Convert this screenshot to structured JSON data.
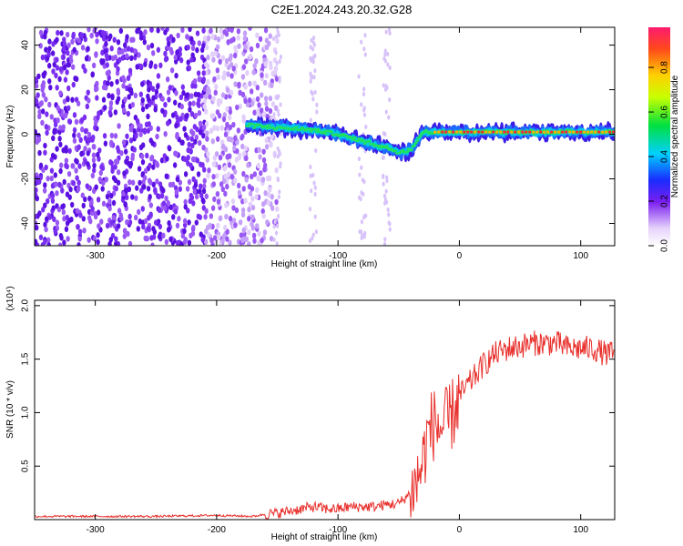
{
  "title": "C2E1.2024.243.20.32.G28",
  "chart_data": [
    {
      "type": "heatmap",
      "xlabel": "Height of straight line (km)",
      "ylabel": "Frequency (Hz)",
      "xlim": [
        -350,
        128
      ],
      "ylim": [
        -50,
        48
      ],
      "xticks": [
        -300,
        -200,
        -100,
        0,
        100
      ],
      "yticks": [
        -40,
        -20,
        0,
        20,
        40
      ],
      "colorbar": {
        "label": "Normalized spectral amplitude",
        "range": [
          0,
          0.98
        ],
        "ticks": [
          0.0,
          0.2,
          0.4,
          0.6,
          0.8
        ]
      },
      "noise_region_x": [
        -350,
        -170
      ],
      "signal_track": {
        "x": [
          -175,
          -150,
          -120,
          -100,
          -80,
          -60,
          -50,
          -40,
          -30,
          -20,
          0,
          50,
          100,
          128
        ],
        "y": [
          4,
          3,
          2,
          0,
          -3,
          -6,
          -8,
          -7,
          1,
          1,
          1,
          1,
          1,
          1
        ]
      }
    },
    {
      "type": "line",
      "xlabel": "Height of straight line (km)",
      "ylabel": "SNR (10 * v/v)",
      "yscale_label": "(x10⁴)",
      "xlim": [
        -350,
        128
      ],
      "ylim": [
        0,
        2.05
      ],
      "xticks": [
        -300,
        -200,
        -100,
        0,
        100
      ],
      "yticks": [
        0.5,
        1.0,
        1.5,
        2.0
      ],
      "ytick_labels": [
        "0.5",
        "1.0",
        "1.5",
        "2.0"
      ],
      "series_color": "#e8302c",
      "x": [
        -350,
        -300,
        -250,
        -200,
        -170,
        -160,
        -150,
        -140,
        -130,
        -120,
        -110,
        -100,
        -90,
        -80,
        -70,
        -60,
        -50,
        -45,
        -40,
        -35,
        -30,
        -25,
        -20,
        -15,
        -10,
        -5,
        0,
        10,
        20,
        30,
        40,
        50,
        60,
        70,
        80,
        90,
        100,
        110,
        120,
        128
      ],
      "y": [
        0.03,
        0.03,
        0.03,
        0.04,
        0.03,
        0.05,
        0.06,
        0.08,
        0.1,
        0.12,
        0.1,
        0.1,
        0.12,
        0.12,
        0.12,
        0.14,
        0.15,
        0.2,
        0.25,
        0.35,
        0.55,
        0.85,
        0.9,
        0.85,
        0.9,
        1.0,
        1.15,
        1.3,
        1.45,
        1.55,
        1.6,
        1.62,
        1.65,
        1.65,
        1.65,
        1.6,
        1.6,
        1.6,
        1.55,
        1.55
      ]
    }
  ]
}
